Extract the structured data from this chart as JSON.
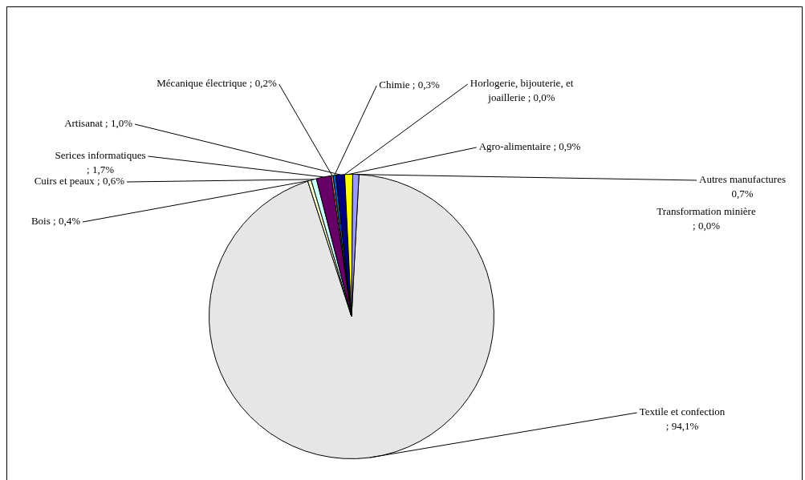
{
  "chart_data": {
    "type": "pie",
    "categories": [
      "Transformation minière",
      "Textile et confection",
      "Bois",
      "Cuirs et peaux",
      "Serices informatiques",
      "Mécanique électrique",
      "Chimie",
      "Artisanat",
      "Horlogerie, bijouterie, et joaillerie",
      "Agro-alimentaire",
      "Autres manufactures"
    ],
    "values": [
      0.0,
      94.1,
      0.4,
      0.6,
      1.7,
      0.2,
      0.3,
      1.0,
      0.0,
      0.9,
      0.7
    ],
    "value_labels": [
      "; 0,0%",
      "; 94,1%",
      "; 0,4%",
      "; 0,6%",
      "; 1,7%",
      "; 0,2%",
      "; 0,3%",
      "; 1,0%",
      "; 0,0%",
      "; 0,9%",
      "0,7%"
    ],
    "colors": [
      "#ff00ff",
      "#e6e6e6",
      "#ffffcc",
      "#ccffff",
      "#660066",
      "#ff8080",
      "#0066cc",
      "#000080",
      "#ff00ff",
      "#ffff00",
      "#9999ff"
    ],
    "legend": false
  }
}
